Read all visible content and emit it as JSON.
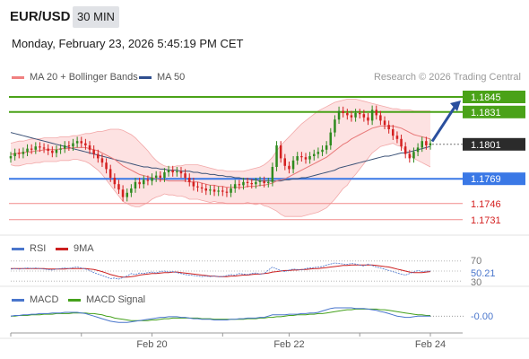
{
  "header": {
    "symbol": "EUR/USD",
    "timeframe": "30 MIN",
    "datetime": "Monday, February 23, 2026 5:45:19 PM CET"
  },
  "legend": {
    "ma20": "MA 20 + Bollinger Bands",
    "ma50": "MA 50",
    "rsi": "RSI",
    "rsi_ma": "9MA",
    "macd": "MACD",
    "macd_signal": "MACD Signal"
  },
  "credit": "Research © 2026 Trading Central",
  "colors": {
    "up": "#2e8b1e",
    "down": "#d42020",
    "bands": "#fbcaca",
    "ma20": "#e87878",
    "ma50": "#3b5277",
    "resistance": "#4aa218",
    "support": "#3a78e6",
    "arrow": "#2a4f9e",
    "rsi": "#4a76cc",
    "rsi_ma": "#cc1f1f",
    "macd": "#4a76cc",
    "macd_signal": "#45a11c"
  },
  "chart_data": [
    {
      "type": "candlestick",
      "title": "EUR/USD 30 MIN",
      "ylim": [
        1.172,
        1.1855
      ],
      "x_tick_labels": [
        "Feb 20",
        "Feb 22",
        "Feb 24"
      ],
      "levels": [
        {
          "value": 1.1845,
          "label": "1.1845",
          "kind": "resistance"
        },
        {
          "value": 1.1831,
          "label": "1.1831",
          "kind": "resistance"
        },
        {
          "value": 1.1801,
          "label": "1.1801",
          "kind": "current"
        },
        {
          "value": 1.1769,
          "label": "1.1769",
          "kind": "support"
        },
        {
          "value": 1.1746,
          "label": "1.1746",
          "kind": "support-minor"
        },
        {
          "value": 1.1731,
          "label": "1.1731",
          "kind": "support-minor"
        }
      ],
      "close": [
        1.179,
        1.1793,
        1.1792,
        1.1794,
        1.1797,
        1.1796,
        1.1799,
        1.1798,
        1.1797,
        1.1795,
        1.1793,
        1.1796,
        1.1797,
        1.18,
        1.1799,
        1.1802,
        1.1804,
        1.1802,
        1.18,
        1.1796,
        1.1792,
        1.1788,
        1.1784,
        1.1778,
        1.177,
        1.1764,
        1.1759,
        1.1752,
        1.1756,
        1.176,
        1.1766,
        1.1764,
        1.1768,
        1.1767,
        1.177,
        1.1772,
        1.177,
        1.1775,
        1.1777,
        1.1775,
        1.1776,
        1.1774,
        1.177,
        1.1766,
        1.1762,
        1.1761,
        1.176,
        1.1758,
        1.1759,
        1.1757,
        1.1758,
        1.1757,
        1.1756,
        1.176,
        1.1764,
        1.1763,
        1.1766,
        1.1765,
        1.1764,
        1.1766,
        1.1767,
        1.1765,
        1.1766,
        1.178,
        1.18,
        1.1788,
        1.1781,
        1.1778,
        1.1786,
        1.179,
        1.1789,
        1.1787,
        1.179,
        1.1792,
        1.1794,
        1.1796,
        1.18,
        1.1812,
        1.1824,
        1.1832,
        1.183,
        1.1828,
        1.1826,
        1.183,
        1.1829,
        1.1826,
        1.1823,
        1.1833,
        1.1828,
        1.1823,
        1.1819,
        1.1815,
        1.1809,
        1.1806,
        1.1799,
        1.1792,
        1.1788,
        1.1794,
        1.1798,
        1.1804,
        1.18,
        1.1802
      ],
      "ma20": [
        1.1792,
        1.1792,
        1.1793,
        1.1793,
        1.1794,
        1.1794,
        1.1795,
        1.1795,
        1.1796,
        1.1796,
        1.1796,
        1.1796,
        1.1797,
        1.1797,
        1.1797,
        1.1798,
        1.1798,
        1.1798,
        1.1798,
        1.1797,
        1.1796,
        1.1795,
        1.1793,
        1.1791,
        1.1789,
        1.1787,
        1.1784,
        1.1781,
        1.1779,
        1.1777,
        1.1775,
        1.1773,
        1.1772,
        1.1771,
        1.177,
        1.1769,
        1.1768,
        1.1768,
        1.1767,
        1.1767,
        1.1767,
        1.1767,
        1.1767,
        1.1766,
        1.1766,
        1.1766,
        1.1765,
        1.1764,
        1.1763,
        1.1763,
        1.1762,
        1.1762,
        1.1761,
        1.1761,
        1.1761,
        1.1761,
        1.1761,
        1.1762,
        1.1762,
        1.1762,
        1.1763,
        1.1763,
        1.1764,
        1.1765,
        1.1767,
        1.1768,
        1.1769,
        1.1771,
        1.1773,
        1.1775,
        1.1777,
        1.1779,
        1.1781,
        1.1783,
        1.1785,
        1.1787,
        1.1789,
        1.1792,
        1.1795,
        1.1798,
        1.1801,
        1.1803,
        1.1806,
        1.1808,
        1.181,
        1.1812,
        1.1814,
        1.1816,
        1.1817,
        1.1818,
        1.1818,
        1.1818,
        1.1818,
        1.1817,
        1.1816,
        1.1814,
        1.1812,
        1.181,
        1.1809,
        1.1808,
        1.1807,
        1.1806
      ],
      "bb_upper": [
        1.1802,
        1.1803,
        1.1804,
        1.1804,
        1.1805,
        1.1806,
        1.1806,
        1.1806,
        1.1807,
        1.1807,
        1.1807,
        1.1807,
        1.1808,
        1.1808,
        1.1808,
        1.1809,
        1.1809,
        1.181,
        1.1811,
        1.1811,
        1.1812,
        1.1813,
        1.1813,
        1.1814,
        1.1815,
        1.1815,
        1.1815,
        1.1814,
        1.1812,
        1.181,
        1.1807,
        1.1803,
        1.1799,
        1.1795,
        1.179,
        1.1786,
        1.1783,
        1.1781,
        1.178,
        1.178,
        1.1781,
        1.1781,
        1.1782,
        1.1782,
        1.1782,
        1.1782,
        1.1781,
        1.178,
        1.1779,
        1.1778,
        1.1777,
        1.1777,
        1.1776,
        1.1776,
        1.1776,
        1.1776,
        1.1776,
        1.1777,
        1.1778,
        1.1779,
        1.178,
        1.1782,
        1.1785,
        1.1789,
        1.1795,
        1.18,
        1.1804,
        1.1808,
        1.1812,
        1.1816,
        1.182,
        1.1823,
        1.1826,
        1.1829,
        1.1832,
        1.1834,
        1.1836,
        1.1838,
        1.184,
        1.1841,
        1.1842,
        1.1843,
        1.1843,
        1.1843,
        1.1842,
        1.1841,
        1.184,
        1.1839,
        1.1838,
        1.1837,
        1.1836,
        1.1835,
        1.1834,
        1.1834,
        1.1833,
        1.1833,
        1.1833,
        1.1832,
        1.1832,
        1.1832,
        1.1832,
        1.1832
      ],
      "bb_lower": [
        1.1782,
        1.1781,
        1.1781,
        1.1782,
        1.1783,
        1.1783,
        1.1784,
        1.1784,
        1.1785,
        1.1785,
        1.1785,
        1.1785,
        1.1786,
        1.1786,
        1.1786,
        1.1787,
        1.1787,
        1.1786,
        1.1785,
        1.1783,
        1.178,
        1.1777,
        1.1773,
        1.1768,
        1.1763,
        1.1758,
        1.1753,
        1.1748,
        1.1746,
        1.1744,
        1.1743,
        1.1743,
        1.1745,
        1.1747,
        1.175,
        1.1752,
        1.1753,
        1.1755,
        1.1754,
        1.1754,
        1.1753,
        1.1753,
        1.1752,
        1.175,
        1.175,
        1.175,
        1.1749,
        1.1748,
        1.1747,
        1.1748,
        1.1747,
        1.1747,
        1.1746,
        1.1746,
        1.1746,
        1.1746,
        1.1746,
        1.1747,
        1.1746,
        1.1745,
        1.1746,
        1.1744,
        1.1743,
        1.1741,
        1.1739,
        1.1736,
        1.1734,
        1.1734,
        1.1734,
        1.1734,
        1.1734,
        1.1735,
        1.1736,
        1.1737,
        1.1738,
        1.174,
        1.1742,
        1.1746,
        1.175,
        1.1755,
        1.176,
        1.1763,
        1.1769,
        1.1773,
        1.1778,
        1.1783,
        1.1788,
        1.1793,
        1.1796,
        1.1799,
        1.18,
        1.1801,
        1.1802,
        1.18,
        1.1799,
        1.1795,
        1.1791,
        1.1788,
        1.1786,
        1.1784,
        1.1782,
        1.178
      ],
      "ma50": [
        1.1812,
        1.1811,
        1.181,
        1.1809,
        1.1808,
        1.1807,
        1.1806,
        1.1805,
        1.1804,
        1.1803,
        1.1802,
        1.1801,
        1.18,
        1.1799,
        1.1798,
        1.1797,
        1.1796,
        1.1795,
        1.1794,
        1.1793,
        1.1792,
        1.1791,
        1.179,
        1.1789,
        1.1788,
        1.1787,
        1.1786,
        1.1785,
        1.1784,
        1.1783,
        1.1782,
        1.1781,
        1.178,
        1.178,
        1.1779,
        1.1779,
        1.1778,
        1.1778,
        1.1777,
        1.1777,
        1.1777,
        1.1776,
        1.1776,
        1.1776,
        1.1775,
        1.1775,
        1.1774,
        1.1774,
        1.1773,
        1.1773,
        1.1772,
        1.1772,
        1.1771,
        1.1771,
        1.177,
        1.177,
        1.1769,
        1.1769,
        1.1768,
        1.1768,
        1.1767,
        1.1767,
        1.1767,
        1.1767,
        1.1767,
        1.1767,
        1.1768,
        1.1768,
        1.1769,
        1.1769,
        1.177,
        1.177,
        1.1771,
        1.1772,
        1.1773,
        1.1774,
        1.1775,
        1.1776,
        1.1777,
        1.1779,
        1.178,
        1.1781,
        1.1782,
        1.1783,
        1.1784,
        1.1785,
        1.1786,
        1.1787,
        1.1788,
        1.1789,
        1.179,
        1.179,
        1.1791,
        1.1792,
        1.1793,
        1.1793,
        1.1794,
        1.1795,
        1.1796,
        1.1797,
        1.1798,
        1.1799
      ]
    },
    {
      "type": "line",
      "name": "RSI",
      "ylim": [
        25,
        75
      ],
      "y_tick_labels": [
        "70",
        "50.21",
        "30"
      ],
      "reference_lines": [
        70,
        50,
        30
      ],
      "rsi": [
        54,
        55,
        54,
        55,
        56,
        55,
        56,
        55,
        54,
        53,
        52,
        54,
        55,
        56,
        55,
        57,
        58,
        56,
        54,
        51,
        47,
        44,
        41,
        38,
        35,
        36,
        34,
        37,
        40,
        45,
        43,
        46,
        45,
        47,
        48,
        46,
        49,
        50,
        48,
        49,
        47,
        45,
        43,
        42,
        41,
        40,
        39,
        40,
        39,
        40,
        39,
        39,
        41,
        43,
        42,
        45,
        44,
        43,
        45,
        46,
        44,
        45,
        52,
        58,
        54,
        51,
        49,
        52,
        54,
        53,
        52,
        55,
        56,
        57,
        58,
        59,
        62,
        64,
        66,
        65,
        64,
        63,
        65,
        64,
        62,
        60,
        64,
        61,
        58,
        56,
        54,
        51,
        49,
        46,
        44,
        42,
        45,
        48,
        51,
        49,
        50,
        50
      ],
      "rsi_ma": [
        55,
        55,
        55,
        55,
        55,
        55,
        55,
        55,
        55,
        54,
        54,
        54,
        54,
        54,
        55,
        55,
        55,
        55,
        55,
        54,
        53,
        51,
        49,
        46,
        43,
        41,
        39,
        38,
        38,
        39,
        40,
        42,
        43,
        44,
        45,
        45,
        46,
        47,
        47,
        48,
        48,
        47,
        46,
        45,
        44,
        43,
        42,
        41,
        40,
        40,
        39,
        39,
        39,
        40,
        40,
        41,
        42,
        42,
        43,
        44,
        44,
        45,
        46,
        48,
        49,
        50,
        51,
        51,
        52,
        52,
        53,
        53,
        54,
        55,
        55,
        56,
        57,
        58,
        59,
        60,
        61,
        61,
        62,
        62,
        62,
        62,
        62,
        62,
        61,
        60,
        59,
        58,
        56,
        54,
        52,
        50,
        48,
        47,
        47,
        47,
        48,
        49
      ]
    },
    {
      "type": "line",
      "name": "MACD",
      "ylim": [
        -0.0025,
        0.002
      ],
      "y_tick_labels": [
        "-0.00"
      ],
      "macd": [
        0.0,
        0.0001,
        0.0001,
        0.0002,
        0.0002,
        0.0003,
        0.0003,
        0.0004,
        0.0004,
        0.0004,
        0.0005,
        0.0005,
        0.0005,
        0.0006,
        0.0006,
        0.0006,
        0.0006,
        0.0005,
        0.0004,
        0.0002,
        0.0,
        -0.0002,
        -0.0004,
        -0.0006,
        -0.0008,
        -0.0009,
        -0.001,
        -0.001,
        -0.001,
        -0.0009,
        -0.0008,
        -0.0007,
        -0.0006,
        -0.0005,
        -0.0004,
        -0.0003,
        -0.0002,
        -0.0002,
        -0.0001,
        -0.0001,
        -0.0001,
        -0.0002,
        -0.0002,
        -0.0003,
        -0.0004,
        -0.0004,
        -0.0005,
        -0.0005,
        -0.0005,
        -0.0006,
        -0.0006,
        -0.0006,
        -0.0006,
        -0.0005,
        -0.0005,
        -0.0004,
        -0.0004,
        -0.0003,
        -0.0003,
        -0.0003,
        -0.0002,
        -0.0002,
        0.0,
        0.0002,
        0.0002,
        0.0002,
        0.0002,
        0.0003,
        0.0003,
        0.0003,
        0.0004,
        0.0004,
        0.0005,
        0.0005,
        0.0006,
        0.0008,
        0.001,
        0.0012,
        0.0013,
        0.0013,
        0.0013,
        0.0013,
        0.0013,
        0.0012,
        0.0012,
        0.0012,
        0.0011,
        0.001,
        0.0009,
        0.0007,
        0.0006,
        0.0004,
        0.0002,
        0.0,
        -0.0001,
        -0.0002,
        -0.0002,
        -0.0001,
        0.0,
        0.0,
        0.0,
        0.0
      ],
      "signal": [
        0.0,
        0.0,
        0.0001,
        0.0001,
        0.0001,
        0.0002,
        0.0002,
        0.0002,
        0.0003,
        0.0003,
        0.0003,
        0.0004,
        0.0004,
        0.0004,
        0.0004,
        0.0005,
        0.0005,
        0.0005,
        0.0005,
        0.0004,
        0.0004,
        0.0003,
        0.0002,
        0.0,
        -0.0001,
        -0.0003,
        -0.0004,
        -0.0005,
        -0.0006,
        -0.0007,
        -0.0007,
        -0.0007,
        -0.0007,
        -0.0007,
        -0.0006,
        -0.0006,
        -0.0005,
        -0.0004,
        -0.0004,
        -0.0003,
        -0.0003,
        -0.0003,
        -0.0003,
        -0.0003,
        -0.0003,
        -0.0003,
        -0.0004,
        -0.0004,
        -0.0004,
        -0.0005,
        -0.0005,
        -0.0005,
        -0.0005,
        -0.0005,
        -0.0005,
        -0.0005,
        -0.0005,
        -0.0004,
        -0.0004,
        -0.0004,
        -0.0003,
        -0.0003,
        -0.0002,
        -0.0002,
        -0.0001,
        -0.0001,
        0.0,
        0.0001,
        0.0001,
        0.0002,
        0.0002,
        0.0002,
        0.0003,
        0.0003,
        0.0004,
        0.0004,
        0.0005,
        0.0006,
        0.0007,
        0.0008,
        0.0009,
        0.001,
        0.001,
        0.0011,
        0.0011,
        0.0011,
        0.0011,
        0.0011,
        0.0011,
        0.001,
        0.001,
        0.0009,
        0.0008,
        0.0007,
        0.0006,
        0.0005,
        0.0004,
        0.0003,
        0.0002,
        0.0002,
        0.0001,
        0.0001
      ]
    }
  ]
}
